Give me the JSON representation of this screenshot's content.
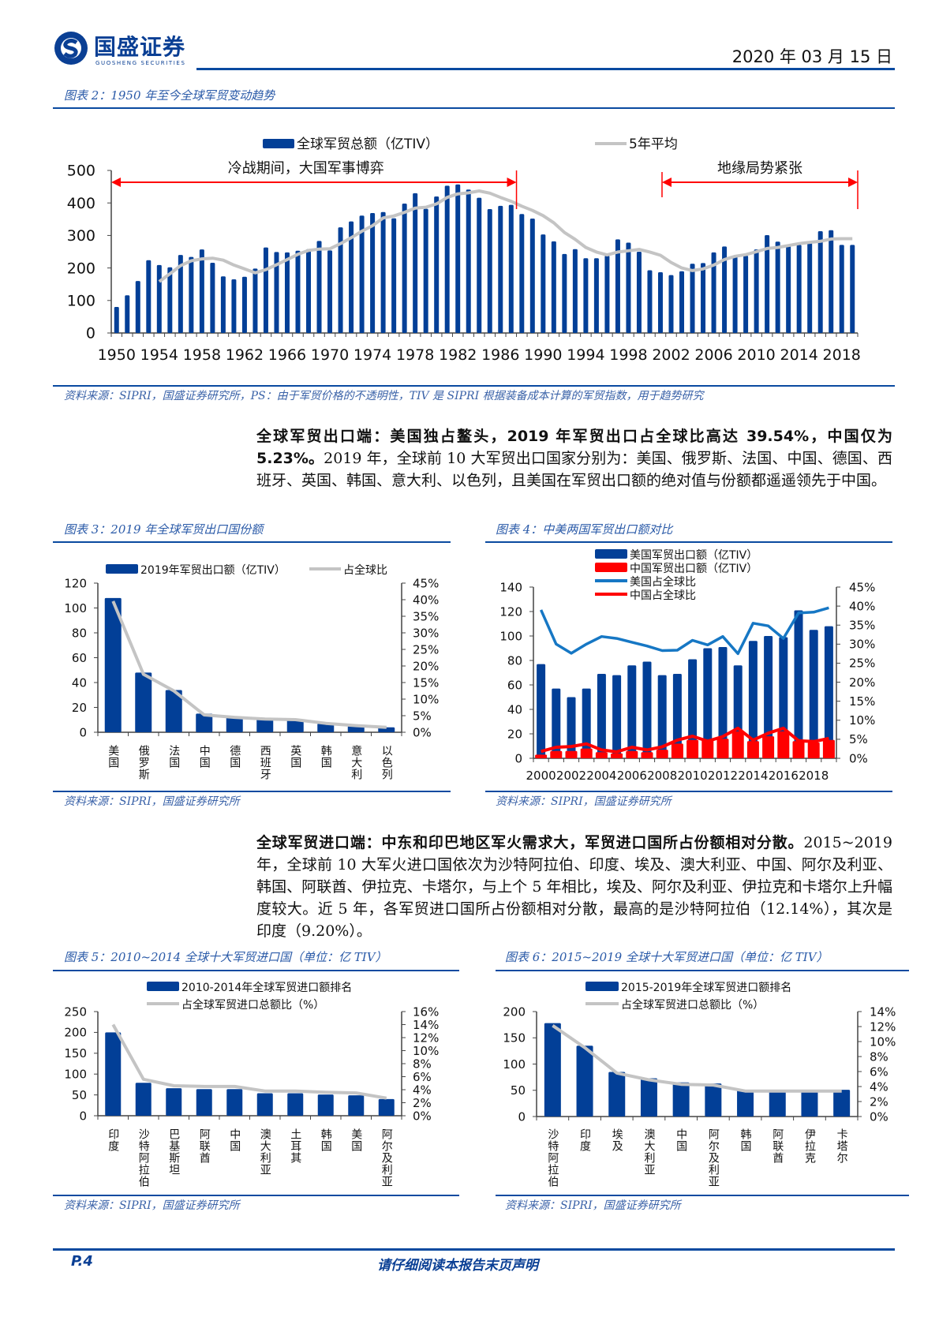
{
  "header": {
    "brand": "国盛证券",
    "brand_en": "GUOSHENG SECURITIES",
    "date": "2020 年 03 月 15 日"
  },
  "figure2": {
    "caption": "图表 2：1950 年至今全球军贸变动趋势",
    "source": "资料来源：SIPRI，国盛证券研究所，PS：由于军贸价格的不透明性，TIV 是 SIPRI 根据装备成本计算的军贸指数，用于趋势研究"
  },
  "section_export": {
    "lead": "全球军贸出口端：美国独占鳌头，2019 年军贸出口占全球比高达 39.54%，中国仅为 5.23%。",
    "body": "2019 年，全球前 10 大军贸出口国家分别为：美国、俄罗斯、法国、中国、德国、西班牙、英国、韩国、意大利、以色列，且美国在军贸出口额的绝对值与份额都遥遥领先于中国。"
  },
  "figure3": {
    "caption": "图表 3：2019 年全球军贸出口国份额",
    "source": "资料来源：SIPRI，国盛证券研究所"
  },
  "figure4": {
    "caption": "图表 4：中美两国军贸出口额对比",
    "source": "资料来源：SIPRI，国盛证券研究所"
  },
  "section_import": {
    "lead": "全球军贸进口端：中东和印巴地区军火需求大，军贸进口国所占份额相对分散。",
    "body": "2015~2019 年，全球前 10 大军火进口国依次为沙特阿拉伯、印度、埃及、澳大利亚、中国、阿尔及利亚、韩国、阿联酋、伊拉克、卡塔尔，与上个 5 年相比，埃及、阿尔及利亚、伊拉克和卡塔尔上升幅度较大。近 5 年，各军贸进口国所占份额相对分散，最高的是沙特阿拉伯（12.14%），其次是印度（9.20%）。"
  },
  "figure5": {
    "caption": "图表 5：2010~2014 全球十大军贸进口国（单位：亿 TIV）",
    "source": "资料来源：SIPRI，国盛证券研究所"
  },
  "figure6": {
    "caption": "图表 6：2015~2019 全球十大军贸进口国（单位：亿 TIV）",
    "source": "资料来源：SIPRI，国盛证券研究所"
  },
  "footer": {
    "page": "P.4",
    "disclaimer": "请仔细阅读本报告末页声明"
  },
  "colors": {
    "bar_blue": "#023f97",
    "avg_gray": "#c4c4c4",
    "us_line": "#1677c4",
    "china_red": "#ff0000",
    "accent": "#0a4aa0"
  },
  "chart_data": [
    {
      "type": "bar+line",
      "x": [
        1950,
        1951,
        1952,
        1953,
        1954,
        1955,
        1956,
        1957,
        1958,
        1959,
        1960,
        1961,
        1962,
        1963,
        1964,
        1965,
        1966,
        1967,
        1968,
        1969,
        1970,
        1971,
        1972,
        1973,
        1974,
        1975,
        1976,
        1977,
        1978,
        1979,
        1980,
        1981,
        1982,
        1983,
        1984,
        1985,
        1986,
        1987,
        1988,
        1989,
        1990,
        1991,
        1992,
        1993,
        1994,
        1995,
        1996,
        1997,
        1998,
        1999,
        2000,
        2001,
        2002,
        2003,
        2004,
        2005,
        2006,
        2007,
        2008,
        2009,
        2010,
        2011,
        2012,
        2013,
        2014,
        2015,
        2016,
        2017,
        2018,
        2019
      ],
      "series": [
        {
          "name": "全球军贸总额（亿TIV）",
          "kind": "bar",
          "values": [
            80,
            116,
            160,
            224,
            209,
            202,
            240,
            234,
            257,
            216,
            174,
            165,
            173,
            198,
            263,
            249,
            248,
            253,
            258,
            283,
            254,
            325,
            343,
            361,
            369,
            372,
            353,
            398,
            430,
            382,
            420,
            453,
            457,
            441,
            416,
            381,
            391,
            394,
            366,
            352,
            303,
            282,
            243,
            258,
            230,
            230,
            238,
            288,
            278,
            250,
            193,
            187,
            178,
            190,
            213,
            215,
            248,
            266,
            239,
            238,
            257,
            301,
            281,
            267,
            271,
            277,
            313,
            316,
            271,
            271
          ]
        },
        {
          "name": "5年平均",
          "kind": "line",
          "values": [
            null,
            null,
            null,
            null,
            158,
            182,
            207,
            222,
            228,
            230,
            224,
            209,
            197,
            185,
            195,
            210,
            226,
            242,
            254,
            258,
            259,
            275,
            293,
            313,
            330,
            354,
            360,
            371,
            384,
            387,
            397,
            417,
            428,
            431,
            437,
            430,
            417,
            405,
            390,
            377,
            361,
            339,
            309,
            288,
            263,
            249,
            240,
            249,
            253,
            257,
            249,
            239,
            217,
            200,
            192,
            197,
            209,
            226,
            236,
            241,
            250,
            260,
            263,
            269,
            275,
            279,
            282,
            289,
            290,
            290
          ]
        }
      ],
      "ylim": [
        0,
        500
      ],
      "y_ticks": [
        "0",
        "100",
        "200",
        "300",
        "400",
        "500"
      ],
      "x_tick_labels": [
        "1950",
        "1954",
        "1958",
        "1962",
        "1966",
        "1970",
        "1974",
        "1978",
        "1982",
        "1986",
        "1990",
        "1994",
        "1998",
        "2002",
        "2006",
        "2010",
        "2014",
        "2018"
      ],
      "annotations": [
        {
          "text": "冷战期间，大国军事博弈",
          "from": 1950,
          "to": 1987
        },
        {
          "text": "地缘局势紧张",
          "from": 2001,
          "to": 2019
        }
      ],
      "legend": "top"
    },
    {
      "type": "bar+line",
      "categories": [
        "美国",
        "俄罗斯",
        "法国",
        "中国",
        "德国",
        "西班牙",
        "英国",
        "韩国",
        "意大利",
        "以色列"
      ],
      "series": [
        {
          "name": "2019年军贸出口额（亿TIV）",
          "kind": "bar",
          "axis": "left",
          "values": [
            108,
            48,
            34,
            15,
            12,
            11,
            10,
            7,
            5,
            4
          ]
        },
        {
          "name": "占全球比",
          "kind": "line",
          "axis": "right",
          "values": [
            39.54,
            17.5,
            12.5,
            5.23,
            4.5,
            4.0,
            3.8,
            2.7,
            2.0,
            1.5
          ]
        }
      ],
      "ylim": [
        0,
        120
      ],
      "y2lim": [
        0,
        45
      ],
      "y_ticks": [
        "0",
        "20",
        "40",
        "60",
        "80",
        "100",
        "120"
      ],
      "y2_ticks": [
        "0%",
        "5%",
        "10%",
        "15%",
        "20%",
        "25%",
        "30%",
        "35%",
        "40%",
        "45%"
      ],
      "legend": "top"
    },
    {
      "type": "bar+line",
      "x": [
        2000,
        2001,
        2002,
        2003,
        2004,
        2005,
        2006,
        2007,
        2008,
        2009,
        2010,
        2011,
        2012,
        2013,
        2014,
        2015,
        2016,
        2017,
        2018,
        2019
      ],
      "series": [
        {
          "name": "美国军贸出口额（亿TIV）",
          "kind": "bar",
          "axis": "left",
          "values": [
            77,
            57,
            50,
            57,
            69,
            68,
            76,
            79,
            68,
            69,
            81,
            90,
            91,
            76,
            96,
            100,
            99,
            121,
            105,
            108
          ]
        },
        {
          "name": "中国军贸出口额（亿TIV）",
          "kind": "bar",
          "axis": "left",
          "values": [
            3,
            6,
            6,
            8,
            5,
            4,
            6,
            5,
            7,
            12,
            15,
            15,
            16,
            22,
            14,
            18,
            22,
            14,
            13,
            15
          ]
        },
        {
          "name": "美国占全球比",
          "kind": "line",
          "axis": "right",
          "values": [
            39,
            30,
            27.6,
            30,
            32,
            31.5,
            30.5,
            29.5,
            28.3,
            28.4,
            31,
            29.8,
            32,
            27.5,
            35.5,
            34.8,
            31.5,
            38.2,
            38.4,
            39.54
          ]
        },
        {
          "name": "中国占全球比",
          "kind": "line",
          "axis": "right",
          "values": [
            1.8,
            2.9,
            3.1,
            3.8,
            2.2,
            1.7,
            2.9,
            2.2,
            3.0,
            4.8,
            5.8,
            4.5,
            5.7,
            7.9,
            4.8,
            6.6,
            7.9,
            4.6,
            4.4,
            5.23
          ]
        }
      ],
      "ylim": [
        0,
        140
      ],
      "y2lim": [
        0,
        45
      ],
      "y_ticks": [
        "0",
        "20",
        "40",
        "60",
        "80",
        "100",
        "120",
        "140"
      ],
      "y2_ticks": [
        "0%",
        "5%",
        "10%",
        "15%",
        "20%",
        "25%",
        "30%",
        "35%",
        "40%",
        "45%"
      ],
      "x_tick_labels": [
        "2000",
        "2002",
        "2004",
        "2006",
        "2008",
        "2010",
        "2012",
        "2014",
        "2016",
        "2018"
      ],
      "legend": "top"
    },
    {
      "type": "bar+line",
      "categories": [
        "印度",
        "沙特阿拉伯",
        "巴基斯坦",
        "阿联酋",
        "中国",
        "澳大利亚",
        "土耳其",
        "韩国",
        "美国",
        "阿尔及利亚"
      ],
      "series": [
        {
          "name": "2010-2014年全球军贸进口额排名",
          "kind": "bar",
          "axis": "left",
          "values": [
            200,
            79,
            66,
            64,
            64,
            54,
            54,
            51,
            49,
            40
          ]
        },
        {
          "name": "占全球军贸进口总额比（%）",
          "kind": "line",
          "axis": "right",
          "values": [
            14,
            5.6,
            4.6,
            4.5,
            4.5,
            3.8,
            3.8,
            3.6,
            3.5,
            2.7
          ]
        }
      ],
      "ylim": [
        0,
        250
      ],
      "y2lim": [
        0,
        16
      ],
      "y_ticks": [
        "0",
        "50",
        "100",
        "150",
        "200",
        "250"
      ],
      "y2_ticks": [
        "0%",
        "2%",
        "4%",
        "6%",
        "8%",
        "10%",
        "12%",
        "14%",
        "16%"
      ],
      "legend": "top"
    },
    {
      "type": "bar+line",
      "categories": [
        "沙特阿拉伯",
        "印度",
        "埃及",
        "澳大利亚",
        "中国",
        "阿尔及利亚",
        "韩国",
        "阿联酋",
        "伊拉克",
        "卡塔尔"
      ],
      "series": [
        {
          "name": "2015-2019年全球军贸进口额排名",
          "kind": "bar",
          "axis": "left",
          "values": [
            178,
            135,
            85,
            73,
            65,
            63,
            51,
            51,
            51,
            51
          ]
        },
        {
          "name": "占全球军贸进口总额比（%）",
          "kind": "line",
          "axis": "right",
          "values": [
            12.14,
            9.2,
            5.8,
            4.9,
            4.3,
            4.2,
            3.4,
            3.4,
            3.4,
            3.4
          ]
        }
      ],
      "ylim": [
        0,
        200
      ],
      "y2lim": [
        0,
        14
      ],
      "y_ticks": [
        "0",
        "50",
        "100",
        "150",
        "200"
      ],
      "y2_ticks": [
        "0%",
        "2%",
        "4%",
        "6%",
        "8%",
        "10%",
        "12%",
        "14%"
      ],
      "legend": "top"
    }
  ]
}
